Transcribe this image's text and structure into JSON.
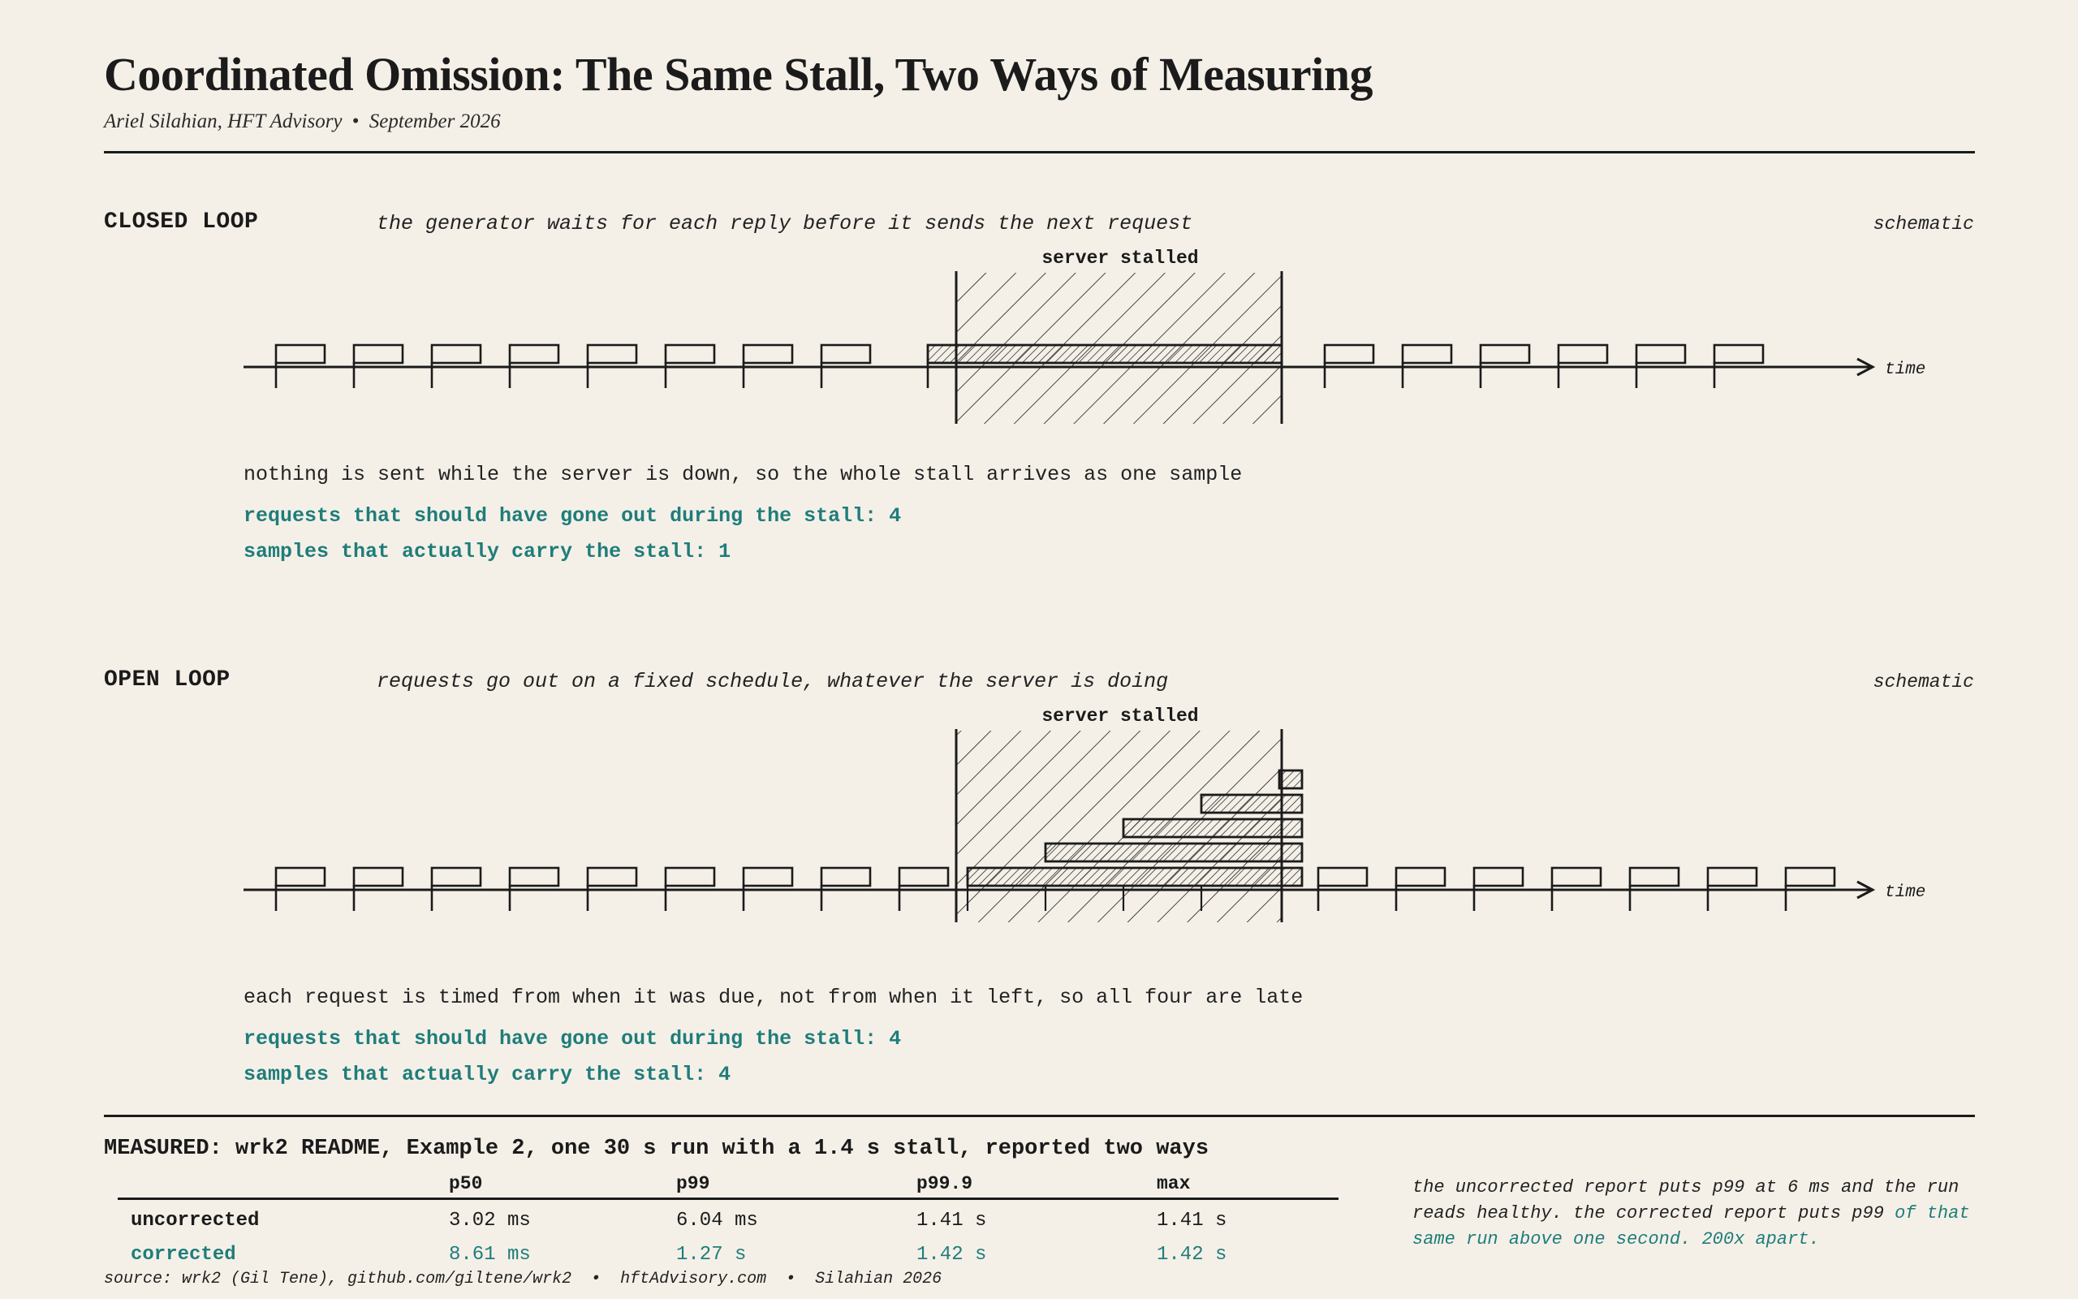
{
  "header": {
    "title": "Coordinated Omission: The Same Stall, Two Ways of Measuring",
    "author": "Ariel Silahian, HFT Advisory",
    "date": "September 2026",
    "separator": "•"
  },
  "closed_loop": {
    "label": "CLOSED LOOP",
    "description": "the generator waits for each reply before it sends the next request",
    "kind": "schematic",
    "stall_label": "server stalled",
    "axis_label": "time",
    "note": "nothing is sent while the server is down, so the whole stall arrives as one sample",
    "should_have_gone_out_label": "requests that should have gone out during the stall: 4",
    "carry_stall_label": "samples that actually carry the stall: 1",
    "requests_during_stall_expected": 4,
    "samples_carrying_stall": 1
  },
  "open_loop": {
    "label": "OPEN LOOP",
    "description": "requests go out on a fixed schedule, whatever the server is doing",
    "kind": "schematic",
    "stall_label": "server stalled",
    "axis_label": "time",
    "note": "each request is timed from when it was due, not from when it left, so all four are late",
    "should_have_gone_out_label": "requests that should have gone out during the stall: 4",
    "carry_stall_label": "samples that actually carry the stall: 4",
    "requests_during_stall_expected": 4,
    "samples_carrying_stall": 4
  },
  "measured": {
    "title": "MEASURED: wrk2 README, Example 2, one 30 s run with a 1.4 s stall, reported two ways",
    "columns": [
      "",
      "p50",
      "p99",
      "p99.9",
      "max"
    ],
    "rows": [
      {
        "label": "uncorrected",
        "p50": "3.02 ms",
        "p99": "6.04 ms",
        "p999": "1.41 s",
        "max": "1.41 s"
      },
      {
        "label": "corrected",
        "p50": "8.61 ms",
        "p99": "1.27 s",
        "p999": "1.42 s",
        "max": "1.42 s"
      }
    ],
    "commentary_plain": "the uncorrected report puts p99 at 6 ms and the run reads healthy. the corrected report puts p99",
    "commentary_highlight": "of that same run above one second. 200x apart."
  },
  "footer": {
    "source": "source: wrk2 (Gil Tene), github.com/giltene/wrk2  •  hftAdvisory.com  •  Silahian 2026"
  },
  "colors": {
    "background": "#f4f0e8",
    "ink": "#1b1b1b",
    "accent_teal": "#1f7d7a"
  }
}
